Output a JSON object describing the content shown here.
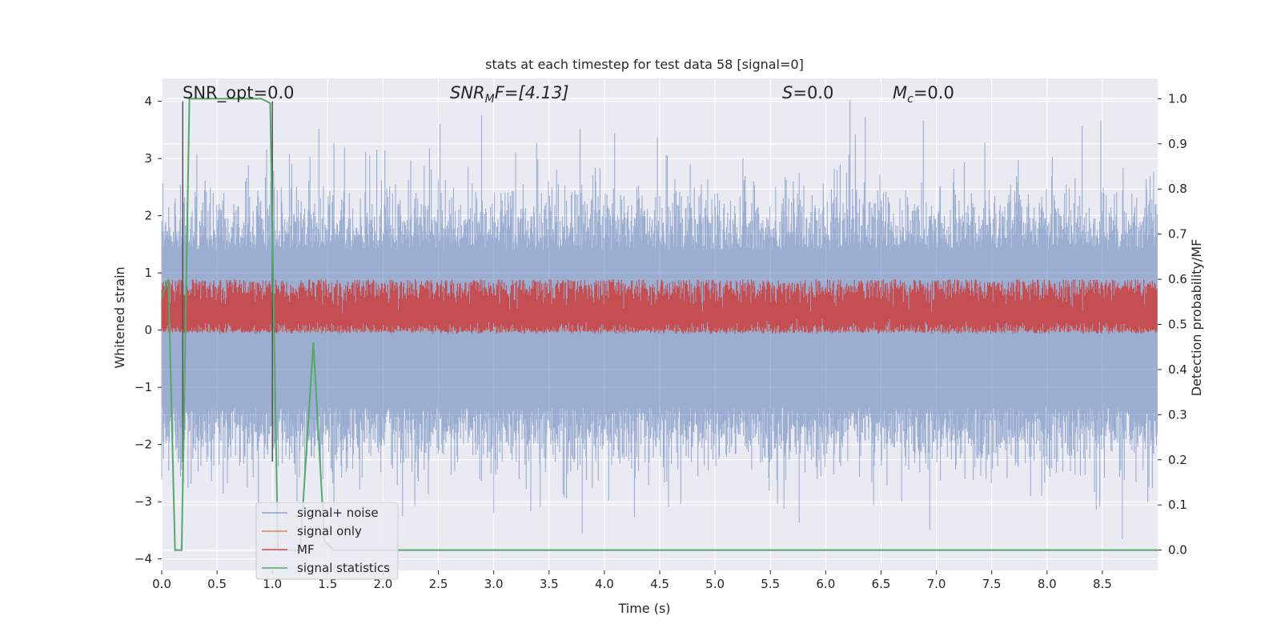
{
  "chart_data": {
    "type": "line",
    "title": "stats at each timestep for test data 58 [signal=0]",
    "xlabel": "Time (s)",
    "ylabel": "Whitened strain",
    "ylabel_right": "Detection probability/MF",
    "xlim": [
      0.0,
      9.0
    ],
    "ylim": [
      -4.2,
      4.4
    ],
    "ylim_right": [
      -0.045,
      1.045
    ],
    "x_ticks": [
      "0.0",
      "0.5",
      "1.0",
      "1.5",
      "2.0",
      "2.5",
      "3.0",
      "3.5",
      "4.0",
      "4.5",
      "5.0",
      "5.5",
      "6.0",
      "6.5",
      "7.0",
      "7.5",
      "8.0",
      "8.5"
    ],
    "y_ticks": [
      "4",
      "3",
      "2",
      "1",
      "0",
      "−1",
      "−2",
      "−3",
      "−4"
    ],
    "y_ticks_right": [
      "1.0",
      "0.9",
      "0.8",
      "0.7",
      "0.6",
      "0.5",
      "0.4",
      "0.3",
      "0.2",
      "0.1",
      "0.0"
    ],
    "grid": true,
    "legend_position": "lower-left",
    "annotations": {
      "snr_opt": "SNR_opt=0.0",
      "snr_mf_main": "SNR",
      "snr_mf_sub": "M",
      "snr_mf_rest": "F=[4.13]",
      "s_main": "S",
      "s_rest": "=0.0",
      "mc_main": "M",
      "mc_sub": "c",
      "mc_rest": "=0.0"
    },
    "vertical_markers_x": [
      0.19,
      1.0
    ],
    "series": [
      {
        "name": "signal+ noise",
        "color": "#4c72b0",
        "axis": "left",
        "x_range": [
          0.0,
          9.0
        ],
        "amplitude_range": [
          -3.6,
          4.0
        ],
        "typical_band": [
          -1.35,
          1.4
        ],
        "peaks": [
          [
            1.42,
            3.52
          ],
          [
            6.22,
            4.02
          ],
          [
            8.68,
            -3.65
          ],
          [
            3.0,
            -3.2
          ],
          [
            3.8,
            -3.55
          ]
        ]
      },
      {
        "name": "signal only",
        "color": "#dd8452",
        "axis": "left",
        "x": [
          0.0,
          9.0
        ],
        "y": [
          0.0,
          0.0
        ]
      },
      {
        "name": "MF",
        "color": "#c44e52",
        "axis": "right",
        "x_range": [
          0.0,
          9.0
        ],
        "typical_band": [
          0.48,
          0.6
        ],
        "peaks": [
          [
            5.25,
            0.6
          ],
          [
            8.45,
            0.6
          ]
        ]
      },
      {
        "name": "signal statistics",
        "color": "#55a868",
        "axis": "right",
        "x": [
          0.0,
          0.06,
          0.12,
          0.18,
          0.25,
          0.35,
          0.5,
          0.7,
          0.9,
          0.98,
          1.05,
          1.12,
          1.25,
          1.37,
          1.47,
          1.55,
          2.0,
          3.0,
          3.45,
          4.0,
          5.0,
          6.0,
          7.0,
          8.0,
          9.0
        ],
        "y": [
          0.56,
          0.6,
          -0.0,
          0.0,
          1.0,
          1.0,
          1.0,
          1.0,
          1.0,
          0.99,
          0.0,
          0.0,
          0.0,
          0.46,
          0.02,
          0.0,
          0.0,
          0.0,
          0.0,
          0.0,
          0.0,
          0.0,
          0.0,
          0.0,
          0.0
        ]
      }
    ]
  },
  "colors": {
    "plot_background": "#eaeaf2",
    "grid": "#ffffff",
    "marker_line": "#555555"
  }
}
